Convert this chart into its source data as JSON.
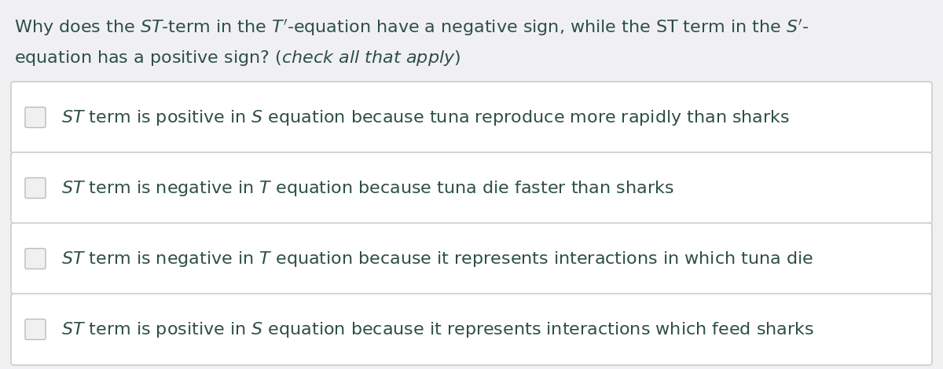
{
  "bg_color": "#f0f0f2",
  "box_bg_color": "#ffffff",
  "box_border_color": "#cccccc",
  "text_color": "#2d4f47",
  "q_line1": "Why does the $\\mathit{ST}$-term in the $\\mathit{T}^{\\prime}$-equation have a negative sign, while the ST term in the $\\mathit{S}^{\\prime}$-",
  "q_line2": "equation has a positive sign? ($\\mathit{check\\ all\\ that\\ apply}$)",
  "options": [
    "$\\mathit{ST}$ term is positive in $\\mathit{S}$ equation because tuna reproduce more rapidly than sharks",
    "$\\mathit{ST}$ term is negative in $\\mathit{T}$ equation because tuna die faster than sharks",
    "$\\mathit{ST}$ term is negative in $\\mathit{T}$ equation because it represents interactions in which tuna die",
    "$\\mathit{ST}$ term is positive in $\\mathit{S}$ equation because it represents interactions which feed sharks"
  ],
  "checkbox_color": "#f0f0f0",
  "checkbox_border_color": "#bbbbbb",
  "figsize": [
    12.0,
    4.7
  ],
  "dpi": 100
}
